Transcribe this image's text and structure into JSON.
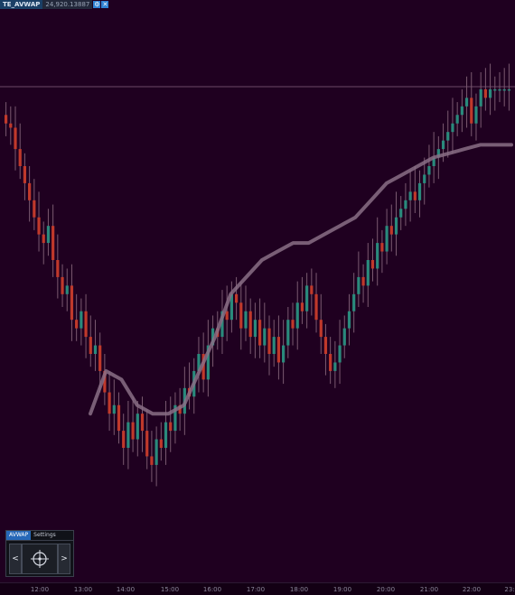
{
  "indicator": {
    "name": "TE_AVWAP",
    "value": "24,920.13887",
    "settings_icon": "gear-icon",
    "close_icon": "close-icon"
  },
  "colors": {
    "background": "#1f0020",
    "up_candle": "#2a8a7c",
    "down_candle": "#c0392b",
    "wick": "#7a5a70",
    "avwap_line": "#8a6f86",
    "price_line": "#6b4a66"
  },
  "time_axis": {
    "labels": [
      "12:00",
      "13:00",
      "14:00",
      "15:00",
      "16:00",
      "17:00",
      "18:00",
      "19:00",
      "20:00",
      "21:00",
      "22:00",
      "23:"
    ]
  },
  "avwap_panel": {
    "tab_active": "AVWAP",
    "tab_settings": "Settings",
    "prev_label": "<",
    "next_label": ">",
    "center_icon": "crosshair-icon"
  },
  "chart_data": {
    "type": "candlestick",
    "x_start": "11:30",
    "x_end": "23:00",
    "series": [
      {
        "name": "price",
        "values": [
          98,
          97,
          92,
          88,
          84,
          80,
          76,
          72,
          70,
          74,
          66,
          62,
          58,
          60,
          52,
          50,
          54,
          48,
          44,
          46,
          40,
          35,
          30,
          32,
          26,
          22,
          28,
          24,
          30,
          26,
          20,
          18,
          24,
          22,
          28,
          26,
          32,
          30,
          36,
          34,
          40,
          44,
          38,
          46,
          50,
          48,
          54,
          52,
          58,
          56,
          50,
          54,
          48,
          52,
          46,
          50,
          44,
          48,
          42,
          46,
          52,
          50,
          56,
          54,
          60,
          58,
          52,
          48,
          44,
          40,
          42,
          46,
          50,
          54,
          58,
          62,
          60,
          66,
          64,
          70,
          68,
          74,
          72,
          76,
          78,
          80,
          82,
          80,
          84,
          86,
          88,
          90,
          92,
          94,
          96,
          98,
          100,
          102,
          104,
          98,
          102,
          106,
          104,
          106,
          106,
          106,
          106,
          106
        ]
      },
      {
        "name": "avwap",
        "values": [
          30,
          40,
          38,
          32,
          30,
          30,
          32,
          40,
          48,
          58,
          62,
          66,
          68,
          70,
          70,
          72,
          74,
          76,
          80,
          84,
          86,
          88,
          90,
          91,
          92,
          93,
          93,
          93
        ]
      }
    ]
  }
}
